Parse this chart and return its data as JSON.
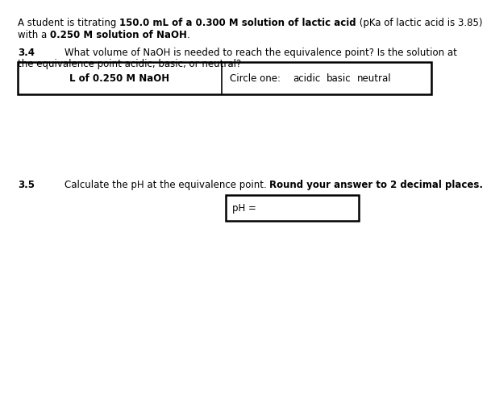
{
  "bg_color": "#ffffff",
  "font_size": 8.5,
  "font_family": "DejaVu Sans",
  "intro_pre": "A student is titrating ",
  "intro_bold": "150.0 mL of a 0.300 M solution of lactic acid",
  "intro_post": " (pKa of lactic acid is 3.85)",
  "line2_pre": "with a ",
  "line2_bold": "0.250 M solution of NaOH",
  "line2_post": ".",
  "q34_num": "3.4",
  "q34_line1": "What volume of NaOH is needed to reach the equivalence point? Is the solution at",
  "q34_line2": "the equivalence point acidic, basic, or neutral?",
  "box34_left": "L of 0.250 M NaOH",
  "box34_circle": "Circle one:",
  "box34_a": "acidic",
  "box34_b": "basic",
  "box34_c": "neutral",
  "q35_num": "3.5",
  "q35_pre": "Calculate the pH at the equivalence point. ",
  "q35_bold": "Round your answer to 2 decimal places.",
  "box35_label": "pH ="
}
